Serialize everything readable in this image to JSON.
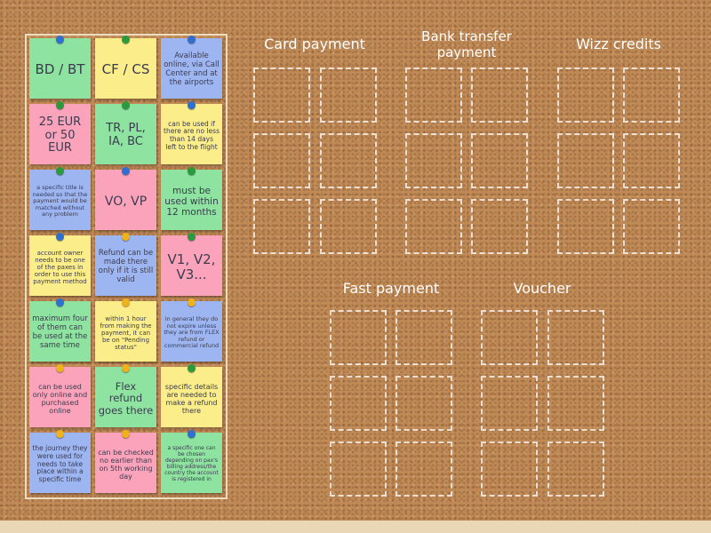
{
  "colors": {
    "green": "#8fe3a0",
    "yellow": "#fbee8a",
    "blue": "#9db6f2",
    "pink": "#fba3bb",
    "pin_blue": "#2f6fd1",
    "pin_green": "#2a9a3d",
    "pin_yellow": "#f0b21a"
  },
  "cards": [
    {
      "text": "BD / BT",
      "color": "green",
      "pin": "pin_blue",
      "size": 15
    },
    {
      "text": "CF / CS",
      "color": "yellow",
      "pin": "pin_green",
      "size": 15
    },
    {
      "text": "Available online, via Call Center and at the airports",
      "color": "blue",
      "pin": "pin_blue",
      "size": 8.5
    },
    {
      "text": "25 EUR or 50 EUR",
      "color": "pink",
      "pin": "pin_green",
      "size": 13
    },
    {
      "text": "TR, PL, IA, BC",
      "color": "green",
      "pin": "pin_green",
      "size": 13
    },
    {
      "text": "can be used if there are no less than 14 days left to the flight",
      "color": "yellow",
      "pin": "pin_blue",
      "size": 7.5
    },
    {
      "text": "a specific title is needed so that the payment would be matched without any problem",
      "color": "blue",
      "pin": "pin_green",
      "size": 6.5
    },
    {
      "text": "VO, VP",
      "color": "pink",
      "pin": "pin_blue",
      "size": 14
    },
    {
      "text": "must be used within 12 months",
      "color": "green",
      "pin": "pin_green",
      "size": 10.5
    },
    {
      "text": "account owner needs to be one of the paxes in order to use this payment method",
      "color": "yellow",
      "pin": "pin_blue",
      "size": 7
    },
    {
      "text": "Refund can be made there only if it is still valid",
      "color": "blue",
      "pin": "pin_yellow",
      "size": 8.5
    },
    {
      "text": "V1, V2, V3...",
      "color": "pink",
      "pin": "pin_green",
      "size": 15
    },
    {
      "text": "maximum four of them can be used at the same time",
      "color": "green",
      "pin": "pin_blue",
      "size": 8.5
    },
    {
      "text": "within 1 hour from making the payment, it can be on \"Pending status\"",
      "color": "yellow",
      "pin": "pin_yellow",
      "size": 7
    },
    {
      "text": "in general they do not expire unless they are from FLEX refund or commercial refund",
      "color": "blue",
      "pin": "pin_yellow",
      "size": 6.5
    },
    {
      "text": "can be used only online and purchased online",
      "color": "pink",
      "pin": "pin_yellow",
      "size": 8
    },
    {
      "text": "Flex refund goes there",
      "color": "green",
      "pin": "pin_yellow",
      "size": 11.5
    },
    {
      "text": "specific details are needed to make a refund there",
      "color": "yellow",
      "pin": "pin_green",
      "size": 8
    },
    {
      "text": "the journey they were used for needs to take place within a specific time",
      "color": "blue",
      "pin": "pin_yellow",
      "size": 7.5
    },
    {
      "text": "can be checked no earlier than on 5th working day",
      "color": "pink",
      "pin": "pin_yellow",
      "size": 8
    },
    {
      "text": "a specific one can be chosen depending on pax's billing address/the country the account is registered in",
      "color": "green",
      "pin": "pin_blue",
      "size": 6
    }
  ],
  "groups": [
    {
      "title": "Card payment"
    },
    {
      "title": "Bank transfer payment"
    },
    {
      "title": "Wizz credits"
    },
    {
      "title": "Fast payment"
    },
    {
      "title": "Voucher"
    }
  ]
}
